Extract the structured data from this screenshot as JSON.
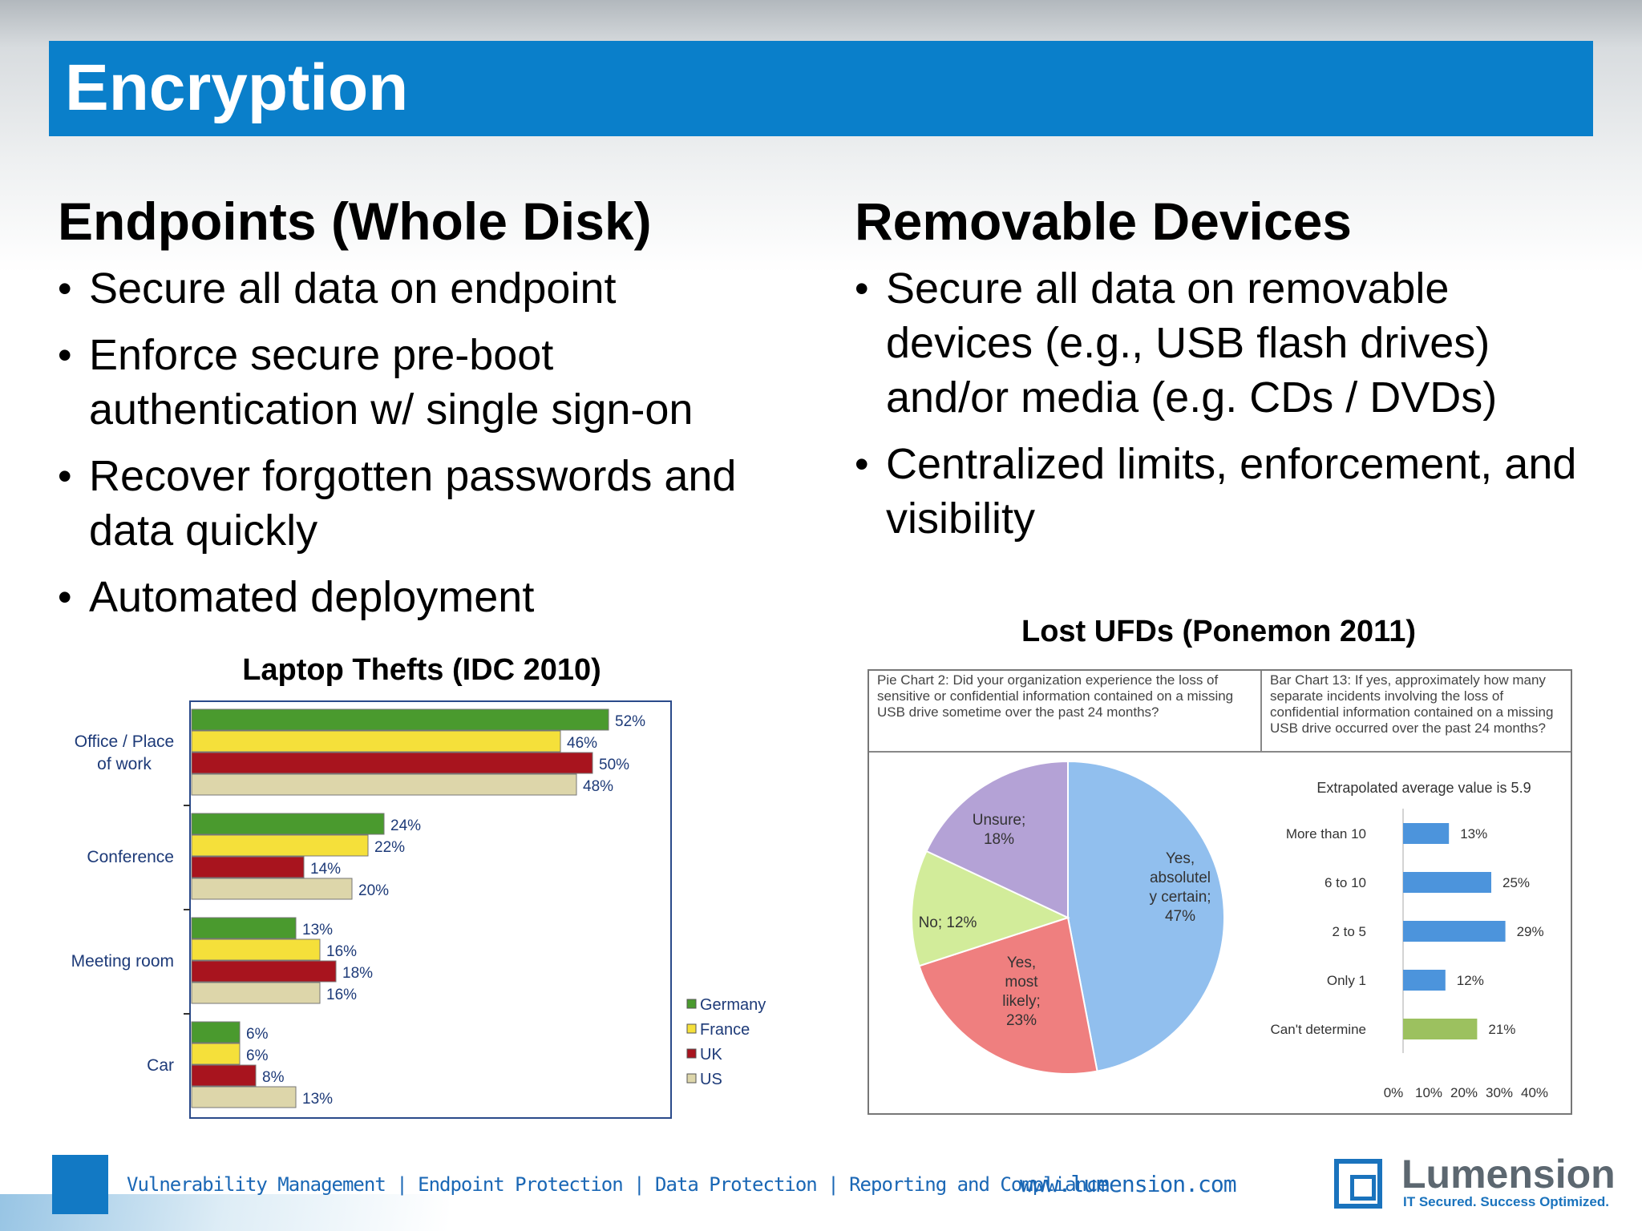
{
  "slide": {
    "title": "Encryption"
  },
  "left": {
    "heading": "Endpoints (Whole Disk)",
    "bullets": [
      "Secure all data on endpoint",
      "Enforce secure pre-boot authentication w/ single sign-on",
      "Recover forgotten passwords and data quickly",
      "Automated deployment"
    ]
  },
  "right": {
    "heading": "Removable Devices",
    "bullets": [
      "Secure all data on removable devices (e.g., USB flash drives) and/or media (e.g. CDs / DVDs)",
      "Centralized limits, enforcement, and visibility"
    ]
  },
  "laptop_chart_title": "Laptop Thefts (IDC 2010)",
  "ufd_title": "Lost UFDs (Ponemon 2011)",
  "ufd_pie_question": "Pie Chart 2:  Did your organization experience the loss of sensitive or confidential information contained on a missing USB drive sometime over the past 24 months?",
  "ufd_bar_question": "Bar Chart 13: If yes, approximately how many separate incidents involving the loss of confidential information contained on a missing USB drive occurred over the past 24 months?",
  "chart_data": [
    {
      "type": "bar",
      "orientation": "horizontal",
      "title": "Laptop Thefts (IDC 2010)",
      "categories": [
        "Office / Place of work",
        "Conference",
        "Meeting room",
        "Car"
      ],
      "series": [
        {
          "name": "Germany",
          "color": "#4a9a2e",
          "values": [
            52,
            24,
            13,
            6
          ]
        },
        {
          "name": "France",
          "color": "#f5e03a",
          "values": [
            46,
            22,
            16,
            6
          ]
        },
        {
          "name": "UK",
          "color": "#a8141e",
          "values": [
            50,
            14,
            18,
            8
          ]
        },
        {
          "name": "US",
          "color": "#ddd6aa",
          "values": [
            48,
            20,
            16,
            13
          ]
        }
      ],
      "value_suffix": "%",
      "legend": "right-bottom"
    },
    {
      "type": "pie",
      "slices": [
        {
          "label": "Yes, absolutel y certain;",
          "value": 47,
          "color": "#91bfee"
        },
        {
          "label": "Yes, most likely;",
          "value": 23,
          "color": "#ef7f7f"
        },
        {
          "label": "No;",
          "value": 12,
          "color": "#d2ec9a"
        },
        {
          "label": "Unsure;",
          "value": 18,
          "color": "#b4a2d6"
        }
      ]
    },
    {
      "type": "bar",
      "orientation": "horizontal",
      "annotation": "Extrapolated average value is 5.9",
      "categories": [
        "More than 10",
        "6 to 10",
        "2 to 5",
        "Only 1",
        "Can't determine"
      ],
      "values": [
        13,
        25,
        29,
        12,
        21
      ],
      "colors": [
        "#4c94dc",
        "#4c94dc",
        "#4c94dc",
        "#4c94dc",
        "#9cc15f"
      ],
      "ticks": [
        "0%",
        "10%",
        "20%",
        "30%",
        "40%"
      ],
      "xlim": [
        0,
        40
      ],
      "value_suffix": "%"
    }
  ],
  "footer": {
    "tagline": "Vulnerability Management | Endpoint Protection | Data Protection | Reporting and Compliance",
    "url": "www.lumension.com",
    "logo_name": "Lumension",
    "logo_tag": "IT Secured. Success Optimized."
  }
}
